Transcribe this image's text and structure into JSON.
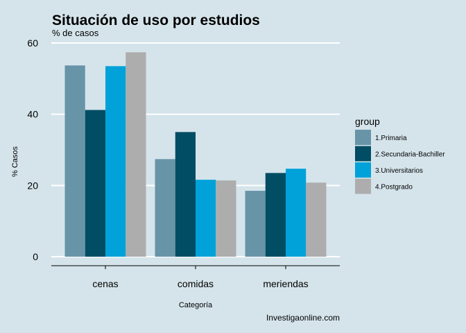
{
  "chart_data": {
    "type": "bar",
    "title": "Situación de uso por estudios",
    "subtitle": "% de casos",
    "xlabel": "Categoría",
    "ylabel": "% Casos",
    "caption": "Investigaonline.com",
    "categories": [
      "cenas",
      "comidas",
      "meriendas"
    ],
    "ylim": [
      0,
      60
    ],
    "yticks": [
      0,
      20,
      40,
      60
    ],
    "grid": true,
    "legend_title": "group",
    "legend_position": "right",
    "series": [
      {
        "name": "1.Primaria",
        "color": "#6894a8",
        "values": [
          53.7,
          27.4,
          18.5
        ]
      },
      {
        "name": "2.Secundaria-Bachiller",
        "color": "#004d64",
        "values": [
          41.2,
          35.0,
          23.5
        ]
      },
      {
        "name": "3.Universitarios",
        "color": "#00a2d9",
        "values": [
          53.5,
          21.6,
          24.7
        ]
      },
      {
        "name": "4.Postgrado",
        "color": "#adadad",
        "values": [
          57.4,
          21.4,
          20.8
        ]
      }
    ]
  }
}
